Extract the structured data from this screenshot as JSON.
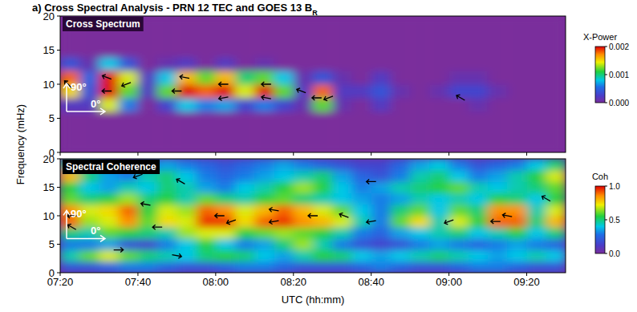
{
  "chart_data": [
    {
      "type": "heatmap",
      "title": "a) Cross Spectral Analysis - PRN 12 TEC and GOES 13 B",
      "title_subscript": "R",
      "panel_label": "Cross Spectrum",
      "y_label": "Frequency (mHz)",
      "phase_labels": [
        "90°",
        "0°"
      ],
      "xlim": [
        440,
        570
      ],
      "ylim": [
        0,
        20
      ],
      "xticks": [
        {
          "value": 440,
          "label": "07:20"
        },
        {
          "value": 460,
          "label": "07:40"
        },
        {
          "value": 480,
          "label": "08:00"
        },
        {
          "value": 500,
          "label": "08:20"
        },
        {
          "value": 520,
          "label": "08:40"
        },
        {
          "value": 540,
          "label": "09:00"
        },
        {
          "value": 560,
          "label": "09:20"
        }
      ],
      "yticks": [
        0,
        5,
        10,
        15,
        20
      ],
      "tick_labels": "y",
      "x_edges": [
        440,
        445,
        450,
        455,
        460,
        465,
        470,
        475,
        480,
        485,
        490,
        495,
        500,
        505,
        510,
        515,
        520,
        525,
        530,
        535,
        540,
        545,
        550,
        555,
        560,
        565,
        570
      ],
      "y_edges": [
        0,
        2,
        4,
        6,
        8,
        10,
        12,
        14,
        16,
        18,
        20
      ],
      "cells": [
        [
          0,
          0,
          0,
          0,
          0,
          0,
          0,
          0,
          0,
          0,
          0,
          0,
          0,
          0,
          0,
          0,
          0,
          0,
          0,
          0,
          0,
          0,
          0,
          0,
          0,
          0
        ],
        [
          0,
          0,
          0,
          0,
          0,
          0,
          0,
          0,
          0,
          0,
          0,
          0,
          0,
          0,
          0,
          0,
          0,
          0,
          0,
          0,
          0,
          0,
          0,
          0,
          0,
          0
        ],
        [
          0,
          0,
          0,
          0,
          0,
          0,
          0,
          0,
          0,
          0,
          0,
          0,
          0,
          0,
          0,
          0,
          0,
          0,
          0,
          0,
          0,
          0,
          0,
          0,
          0,
          0
        ],
        [
          0.0002,
          0.0002,
          0.0014,
          0.0006,
          0,
          0.0003,
          0.0008,
          0.0006,
          0.0007,
          0.0003,
          0.0006,
          0.0003,
          0.0001,
          0.0012,
          0.0001,
          0,
          0.0002,
          0,
          0,
          0,
          0,
          0.0001,
          0,
          0,
          0,
          0
        ],
        [
          0.0015,
          0.0004,
          0.002,
          0.0012,
          0.0002,
          0.0012,
          0.002,
          0.0018,
          0.002,
          0.0014,
          0.002,
          0.0012,
          0.0002,
          0.0018,
          0.0002,
          0.0002,
          0.0004,
          0.0001,
          0,
          0.0001,
          0.0003,
          0.0003,
          0.0001,
          0,
          0,
          0
        ],
        [
          0.0018,
          0.0005,
          0.002,
          0.0014,
          0.0002,
          0.0008,
          0.0016,
          0.0012,
          0.0016,
          0.001,
          0.0012,
          0.0008,
          0.0001,
          0.0004,
          0.0001,
          0,
          0.0002,
          0,
          0,
          0,
          0.0001,
          0.0001,
          0,
          0,
          0,
          0
        ],
        [
          0.0004,
          0.0001,
          0.0008,
          0.0004,
          0,
          0.0001,
          0.0002,
          0,
          0.0002,
          0,
          0.0001,
          0,
          0,
          0,
          0,
          0,
          0,
          0,
          0,
          0,
          0,
          0,
          0,
          0,
          0,
          0
        ],
        [
          0,
          0,
          0,
          0,
          0,
          0,
          0,
          0,
          0,
          0,
          0,
          0,
          0,
          0,
          0,
          0,
          0,
          0,
          0,
          0,
          0,
          0,
          0,
          0,
          0,
          0
        ],
        [
          0,
          0,
          0,
          0,
          0,
          0,
          0,
          0,
          0,
          0,
          0,
          0,
          0,
          0,
          0,
          0,
          0,
          0,
          0,
          0,
          0,
          0,
          0,
          0,
          0,
          0
        ],
        [
          0,
          0,
          0,
          0,
          0,
          0,
          0,
          0,
          0,
          0,
          0,
          0,
          0,
          0,
          0,
          0,
          0,
          0,
          0,
          0,
          0,
          0,
          0,
          0,
          0,
          0
        ]
      ],
      "colorbar": {
        "label": "X-Power",
        "range": [
          0,
          0.002
        ],
        "ticks": [
          {
            "value": 0,
            "label": "0.000"
          },
          {
            "value": 0.001,
            "label": "0.001"
          },
          {
            "value": 0.002,
            "label": "0.002"
          }
        ]
      },
      "arrows": {
        "x": [
          442,
          452,
          452,
          457,
          470,
          472,
          482,
          482,
          493,
          493,
          502,
          506,
          509,
          543
        ],
        "y": [
          10,
          9,
          11,
          10,
          9,
          11,
          10,
          8,
          10,
          8,
          9,
          8,
          8,
          8
        ],
        "phase": [
          135,
          180,
          160,
          200,
          180,
          170,
          180,
          190,
          180,
          170,
          160,
          180,
          200,
          150
        ]
      }
    },
    {
      "type": "heatmap",
      "panel_label": "Spectral Coherence",
      "x_label": "UTC (hh:mm)",
      "phase_labels": [
        "90°",
        "0°"
      ],
      "xlim": [
        440,
        570
      ],
      "ylim": [
        0,
        20
      ],
      "xticks": [
        {
          "value": 440,
          "label": "07:20"
        },
        {
          "value": 460,
          "label": "07:40"
        },
        {
          "value": 480,
          "label": "08:00"
        },
        {
          "value": 500,
          "label": "08:20"
        },
        {
          "value": 520,
          "label": "08:40"
        },
        {
          "value": 540,
          "label": "09:00"
        },
        {
          "value": 560,
          "label": "09:20"
        }
      ],
      "yticks": [
        0,
        5,
        10,
        15,
        20
      ],
      "x_edges": [
        440,
        445,
        450,
        455,
        460,
        465,
        470,
        475,
        480,
        485,
        490,
        495,
        500,
        505,
        510,
        515,
        520,
        525,
        530,
        535,
        540,
        545,
        550,
        555,
        560,
        565,
        570
      ],
      "y_edges": [
        0,
        2,
        4,
        6,
        8,
        10,
        12,
        14,
        16,
        18,
        20
      ],
      "cells": [
        [
          0.2,
          0.2,
          0.25,
          0.3,
          0.3,
          0.25,
          0.2,
          0.2,
          0.25,
          0.3,
          0.3,
          0.25,
          0.2,
          0.2,
          0.2,
          0.25,
          0.3,
          0.25,
          0.2,
          0.2,
          0.25,
          0.3,
          0.3,
          0.25,
          0.2,
          0.2
        ],
        [
          0.45,
          0.6,
          0.7,
          0.6,
          0.5,
          0.45,
          0.4,
          0.5,
          0.55,
          0.5,
          0.4,
          0.35,
          0.45,
          0.55,
          0.5,
          0.4,
          0.35,
          0.4,
          0.45,
          0.5,
          0.45,
          0.4,
          0.35,
          0.4,
          0.45,
          0.4
        ],
        [
          0.3,
          0.3,
          0.35,
          0.2,
          0.15,
          0.3,
          0.4,
          0.55,
          0.4,
          0.3,
          0.35,
          0.5,
          0.65,
          0.45,
          0.3,
          0.2,
          0.15,
          0.2,
          0.3,
          0.35,
          0.3,
          0.25,
          0.3,
          0.35,
          0.3,
          0.25
        ],
        [
          0.5,
          0.45,
          0.6,
          0.55,
          0.5,
          0.45,
          0.65,
          0.7,
          0.7,
          0.55,
          0.6,
          0.65,
          0.6,
          0.55,
          0.45,
          0.3,
          0.25,
          0.35,
          0.4,
          0.45,
          0.5,
          0.4,
          0.45,
          0.55,
          0.4,
          0.5
        ],
        [
          0.9,
          0.65,
          0.7,
          0.85,
          0.6,
          0.75,
          0.7,
          0.95,
          0.95,
          0.75,
          0.9,
          0.95,
          0.85,
          0.8,
          0.7,
          0.45,
          0.3,
          0.6,
          0.75,
          0.45,
          0.7,
          0.55,
          0.9,
          0.9,
          0.5,
          0.8
        ],
        [
          0.85,
          0.7,
          0.75,
          0.9,
          0.55,
          0.7,
          0.65,
          0.9,
          0.85,
          0.7,
          0.8,
          0.9,
          0.8,
          0.7,
          0.6,
          0.4,
          0.3,
          0.5,
          0.6,
          0.4,
          0.6,
          0.5,
          0.85,
          0.85,
          0.45,
          0.7
        ],
        [
          0.6,
          0.5,
          0.55,
          0.65,
          0.5,
          0.55,
          0.45,
          0.6,
          0.5,
          0.45,
          0.55,
          0.6,
          0.5,
          0.45,
          0.4,
          0.35,
          0.3,
          0.35,
          0.45,
          0.4,
          0.45,
          0.4,
          0.55,
          0.5,
          0.4,
          0.55
        ],
        [
          0.55,
          0.4,
          0.35,
          0.45,
          0.4,
          0.5,
          0.45,
          0.35,
          0.3,
          0.4,
          0.45,
          0.55,
          0.65,
          0.55,
          0.4,
          0.3,
          0.35,
          0.45,
          0.5,
          0.55,
          0.6,
          0.45,
          0.4,
          0.45,
          0.5,
          0.6
        ],
        [
          0.8,
          0.5,
          0.35,
          0.3,
          0.45,
          0.5,
          0.4,
          0.3,
          0.25,
          0.3,
          0.35,
          0.4,
          0.45,
          0.5,
          0.35,
          0.25,
          0.2,
          0.3,
          0.45,
          0.5,
          0.4,
          0.3,
          0.35,
          0.45,
          0.55,
          0.7
        ],
        [
          0.5,
          0.4,
          0.3,
          0.2,
          0.3,
          0.35,
          0.3,
          0.25,
          0.2,
          0.25,
          0.3,
          0.35,
          0.3,
          0.25,
          0.2,
          0.15,
          0.15,
          0.25,
          0.35,
          0.4,
          0.3,
          0.2,
          0.25,
          0.3,
          0.4,
          0.5
        ]
      ],
      "colorbar": {
        "label": "Coh",
        "range": [
          0,
          1
        ],
        "ticks": [
          {
            "value": 0,
            "label": "0.0"
          },
          {
            "value": 0.5,
            "label": "0.5"
          },
          {
            "value": 1,
            "label": "1.0"
          }
        ]
      },
      "arrows": {
        "x": [
          443,
          443,
          462,
          465,
          481,
          484,
          495,
          495,
          505,
          513,
          520,
          540,
          552,
          555,
          460,
          471,
          455,
          470,
          520,
          565
        ],
        "y": [
          10,
          8,
          12,
          8,
          10,
          9,
          9,
          11,
          10,
          10,
          9,
          9,
          9,
          10,
          17,
          16,
          4,
          3,
          16,
          13
        ],
        "phase": [
          180,
          150,
          170,
          180,
          180,
          200,
          190,
          170,
          180,
          160,
          190,
          200,
          180,
          170,
          200,
          150,
          0,
          350,
          180,
          150
        ]
      }
    }
  ]
}
